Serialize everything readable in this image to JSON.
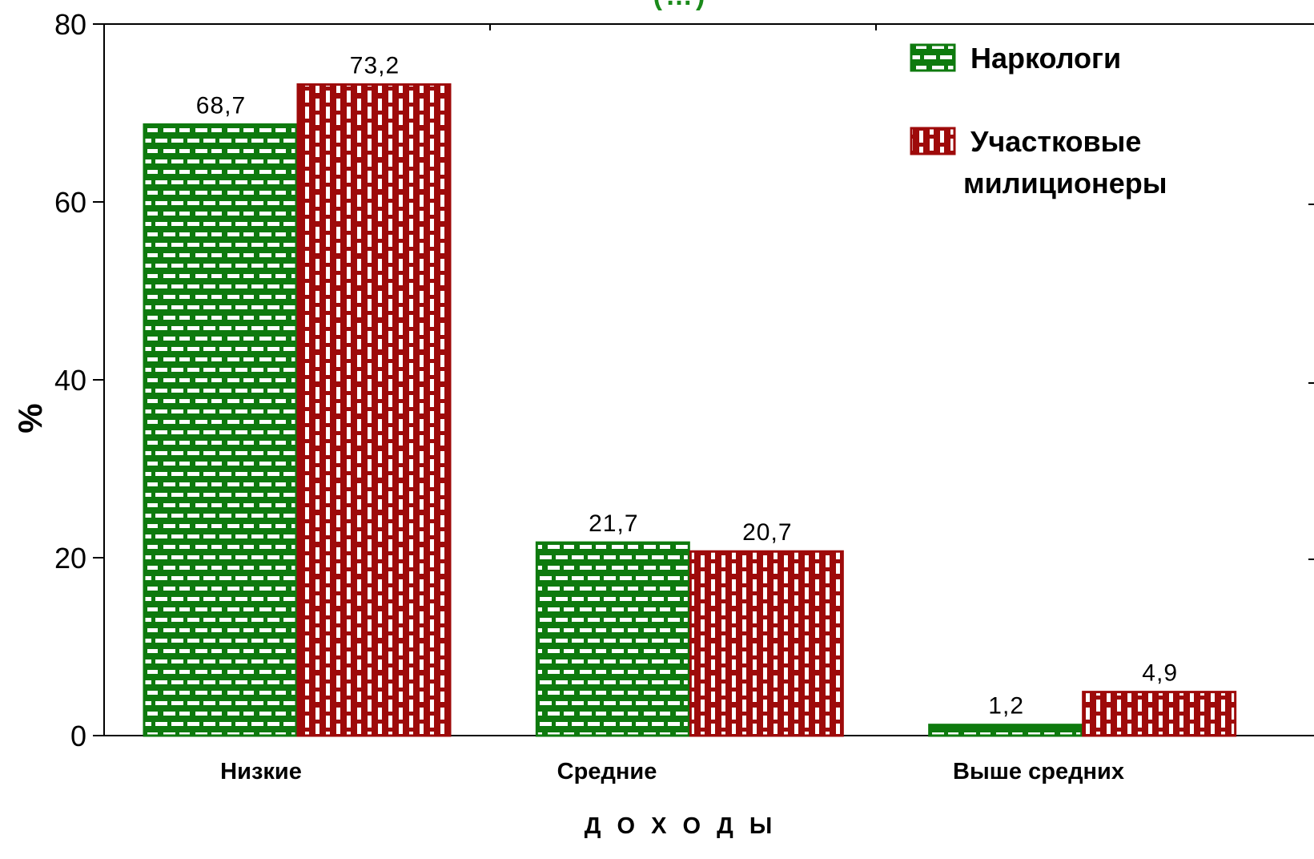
{
  "chart_data": {
    "type": "bar",
    "title": "(…)",
    "xlabel": "Д О Х О Д Ы",
    "ylabel": "%",
    "ylim": [
      0,
      80
    ],
    "yticks": [
      0,
      20,
      40,
      60,
      80
    ],
    "categories": [
      "Низкие",
      "Средние",
      "Выше  средних"
    ],
    "series": [
      {
        "name": "Наркологи",
        "values": [
          68.7,
          21.7,
          1.2
        ],
        "labels": [
          "68,7",
          "21,7",
          "1,2"
        ],
        "color": "#0e7a0e",
        "pattern": "bricks-horizontal"
      },
      {
        "name": "Участковые милиционеры",
        "values": [
          73.2,
          20.7,
          4.9
        ],
        "labels": [
          "73,2",
          "20,7",
          "4,9"
        ],
        "color": "#9e0a0a",
        "pattern": "bricks-vertical"
      }
    ],
    "legend_lines": [
      [
        "Наркологи"
      ],
      [
        "Участковые",
        "милиционеры"
      ]
    ],
    "legend_position": "top-right",
    "grid": false
  }
}
